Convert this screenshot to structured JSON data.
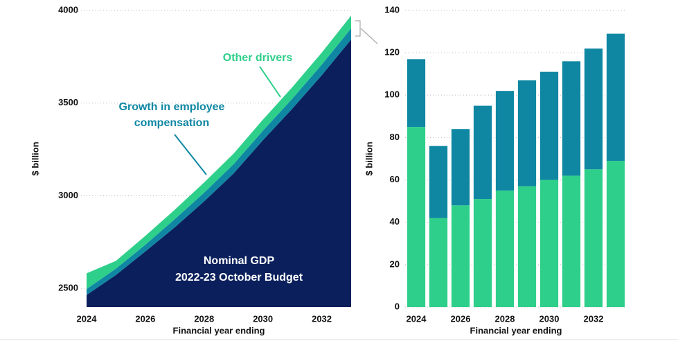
{
  "chart_data": [
    {
      "type": "area",
      "ylabel": "$ billion",
      "xlabel": "Financial year ending",
      "x": [
        2024,
        2025,
        2026,
        2027,
        2028,
        2029,
        2030,
        2031,
        2032,
        2033
      ],
      "xlim": [
        2024,
        2033
      ],
      "xticks": [
        2024,
        2026,
        2028,
        2030,
        2032
      ],
      "ylim": [
        2400,
        4000
      ],
      "yticks": [
        2500,
        3000,
        3500,
        4000
      ],
      "grid": true,
      "series": [
        {
          "name": "Nominal GDP",
          "color": "#0b1f5c",
          "values": [
            2465,
            2573,
            2700,
            2830,
            2970,
            3120,
            3300,
            3470,
            3650,
            3843
          ]
        },
        {
          "name": "Growth in employee compensation",
          "color": "#0f87a3",
          "values": [
            32,
            34,
            36,
            44,
            47,
            50,
            51,
            54,
            57,
            60
          ]
        },
        {
          "name": "Other drivers",
          "color": "#2ecf8a",
          "values": [
            85,
            42,
            48,
            51,
            55,
            57,
            60,
            62,
            65,
            69
          ]
        }
      ],
      "annotations": [
        "2022-23 October Budget"
      ]
    },
    {
      "type": "bar",
      "ylabel": "$ billion",
      "xlabel": "Financial year ending",
      "categories": [
        "2024",
        null,
        "2026",
        null,
        "2028",
        null,
        "2030",
        null,
        "2032",
        null
      ],
      "ylim": [
        0,
        140
      ],
      "yticks": [
        0,
        20,
        40,
        60,
        80,
        100,
        120,
        140
      ],
      "grid": true,
      "series": [
        {
          "color": "#2ecf8a",
          "values": [
            85,
            42,
            48,
            51,
            55,
            57,
            60,
            62,
            65,
            69
          ]
        },
        {
          "color": "#0f87a3",
          "values": [
            32,
            34,
            36,
            44,
            47,
            50,
            51,
            54,
            57,
            60
          ]
        }
      ]
    }
  ]
}
